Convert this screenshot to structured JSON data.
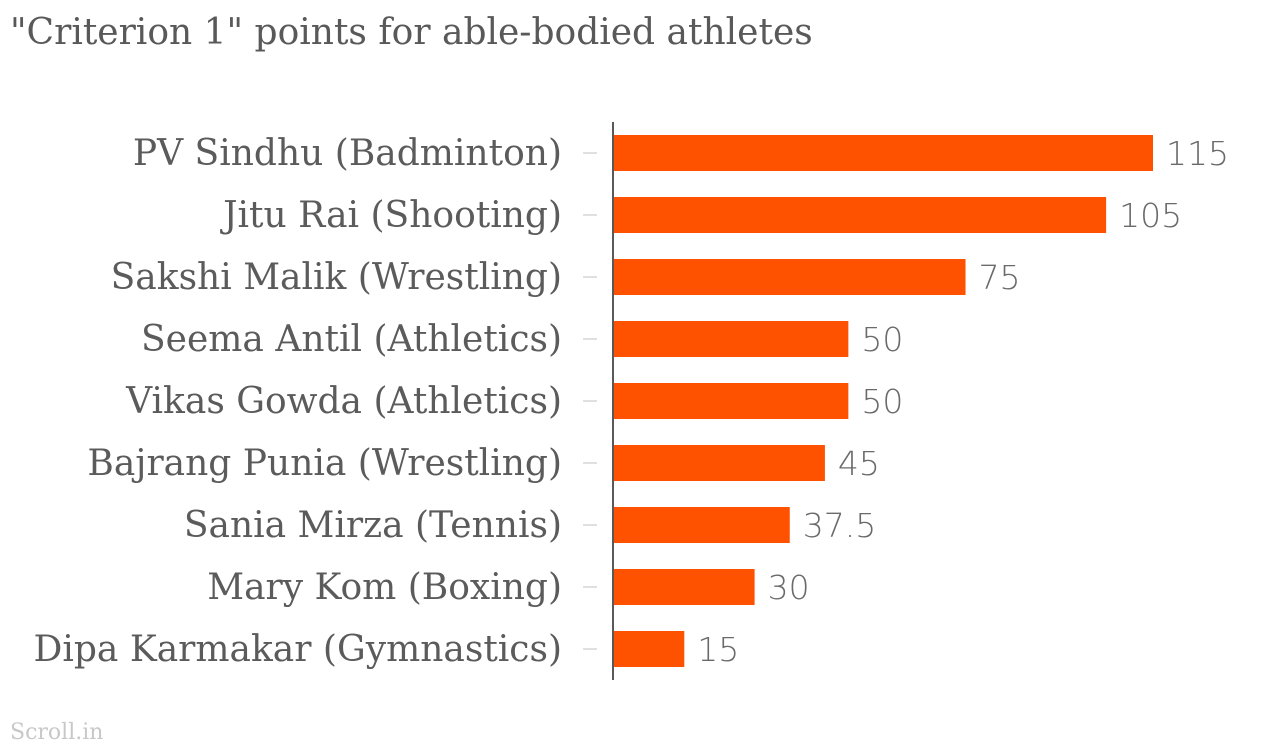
{
  "chart_data": {
    "type": "bar",
    "orientation": "horizontal",
    "title": "\"Criterion 1\" points for able-bodied athletes",
    "categories": [
      "PV Sindhu (Badminton)",
      "Jitu Rai (Shooting)",
      "Sakshi Malik (Wrestling)",
      "Seema Antil (Athletics)",
      "Vikas Gowda (Athletics)",
      "Bajrang Punia (Wrestling)",
      "Sania Mirza (Tennis)",
      "Mary Kom (Boxing)",
      "Dipa Karmakar (Gymnastics)"
    ],
    "values": [
      115,
      105,
      75,
      50,
      50,
      45,
      37.5,
      30,
      15
    ],
    "value_labels": [
      "115",
      "105",
      "75",
      "50",
      "50",
      "45",
      "37.5",
      "30",
      "15"
    ],
    "xlim": [
      0,
      115
    ],
    "grid": false,
    "bar_color": "#ff5200",
    "credit": "Scroll.in"
  }
}
